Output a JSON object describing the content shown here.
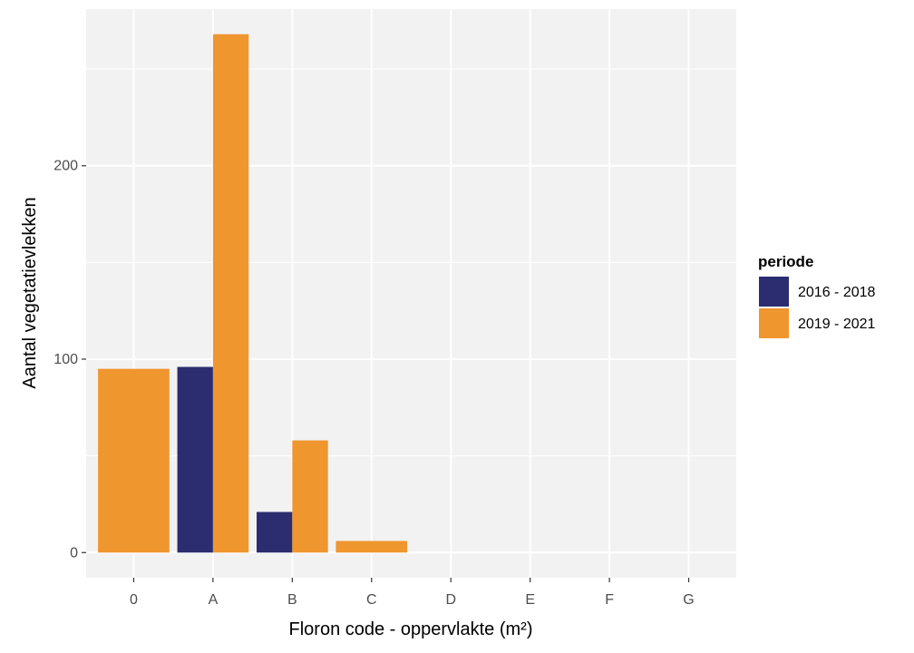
{
  "chart_data": {
    "type": "bar",
    "title": "",
    "xlabel": "Floron code - oppervlakte (m²)",
    "ylabel": "Aantal vegetatievlekken",
    "categories": [
      "0",
      "A",
      "B",
      "C",
      "D",
      "E",
      "F",
      "G"
    ],
    "ylim": [
      -13,
      281
    ],
    "yticks": [
      "0",
      "100",
      "200"
    ],
    "grid": true,
    "legend_position": "right",
    "legend_title": "periode",
    "series": [
      {
        "name": "2016 - 2018",
        "color": "#2b2d70",
        "values": [
          0,
          96,
          21,
          0,
          0,
          0,
          0,
          0
        ]
      },
      {
        "name": "2019 - 2021",
        "color": "#f0962f",
        "values": [
          95,
          268,
          58,
          6,
          0,
          0,
          0,
          0
        ]
      }
    ]
  }
}
